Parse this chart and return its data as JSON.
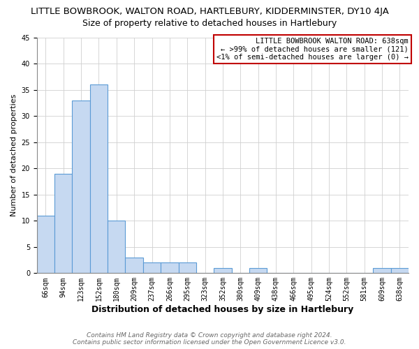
{
  "title": "LITTLE BOWBROOK, WALTON ROAD, HARTLEBURY, KIDDERMINSTER, DY10 4JA",
  "subtitle": "Size of property relative to detached houses in Hartlebury",
  "xlabel": "Distribution of detached houses by size in Hartlebury",
  "ylabel": "Number of detached properties",
  "categories": [
    "66sqm",
    "94sqm",
    "123sqm",
    "152sqm",
    "180sqm",
    "209sqm",
    "237sqm",
    "266sqm",
    "295sqm",
    "323sqm",
    "352sqm",
    "380sqm",
    "409sqm",
    "438sqm",
    "466sqm",
    "495sqm",
    "524sqm",
    "552sqm",
    "581sqm",
    "609sqm",
    "638sqm"
  ],
  "values": [
    11,
    19,
    33,
    36,
    10,
    3,
    2,
    2,
    2,
    0,
    1,
    0,
    1,
    0,
    0,
    0,
    0,
    0,
    0,
    1,
    1
  ],
  "bar_color": "#c6d9f1",
  "bar_edge_color": "#5b9bd5",
  "highlight_bar_index": 20,
  "highlight_bar_edge_color": "#c00000",
  "annotation_box_text": "LITTLE BOWBROOK WALTON ROAD: 638sqm\n← >99% of detached houses are smaller (121)\n<1% of semi-detached houses are larger (0) →",
  "annotation_box_edge_color": "#c00000",
  "annotation_box_bg": "#ffffff",
  "ylim": [
    0,
    45
  ],
  "yticks": [
    0,
    5,
    10,
    15,
    20,
    25,
    30,
    35,
    40,
    45
  ],
  "footnote1": "Contains HM Land Registry data © Crown copyright and database right 2024.",
  "footnote2": "Contains public sector information licensed under the Open Government Licence v3.0.",
  "title_fontsize": 9.5,
  "subtitle_fontsize": 9,
  "xlabel_fontsize": 9,
  "ylabel_fontsize": 8,
  "tick_fontsize": 7,
  "footnote_fontsize": 6.5,
  "grid_color": "#d0d0d0"
}
